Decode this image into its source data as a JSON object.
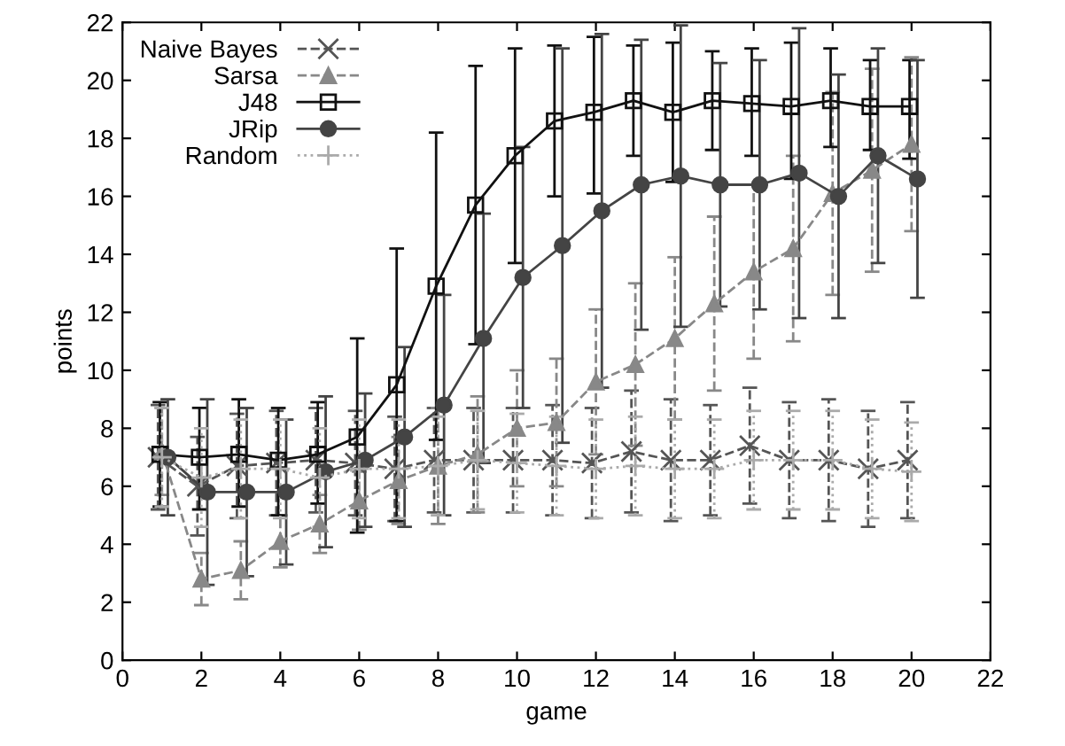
{
  "chart_data": {
    "type": "line",
    "xlabel": "game",
    "ylabel": "points",
    "xlim": [
      0,
      22
    ],
    "xticks": [
      0,
      2,
      4,
      6,
      8,
      10,
      12,
      14,
      16,
      18,
      20,
      22
    ],
    "ylim": [
      0,
      22
    ],
    "yticks": [
      0,
      2,
      4,
      6,
      8,
      10,
      12,
      14,
      16,
      18,
      20,
      22
    ],
    "grid": false,
    "legend": "top left",
    "series": [
      {
        "name": "Naive Bayes",
        "color": "#555555",
        "marker": "cross",
        "line_style": "dashed",
        "x": [
          0.9,
          1.9,
          2.9,
          3.9,
          4.9,
          5.9,
          6.9,
          7.9,
          8.9,
          9.9,
          10.9,
          11.9,
          12.9,
          13.9,
          14.9,
          15.9,
          16.9,
          17.9,
          18.9,
          19.9
        ],
        "values": [
          7.0,
          6.0,
          6.7,
          6.8,
          6.9,
          6.8,
          6.6,
          6.9,
          6.9,
          6.9,
          6.9,
          6.8,
          7.2,
          6.9,
          6.9,
          7.4,
          6.9,
          6.9,
          6.6,
          6.9
        ],
        "errors": [
          1.8,
          1.7,
          1.8,
          1.8,
          1.8,
          1.8,
          1.8,
          1.8,
          1.8,
          1.8,
          1.9,
          1.9,
          2.1,
          2.1,
          1.9,
          2.0,
          2.0,
          2.1,
          2.0,
          2.0
        ]
      },
      {
        "name": "Sarsa",
        "color": "#888888",
        "marker": "triangle",
        "line_style": "dashed",
        "x": [
          1,
          2,
          3,
          4,
          5,
          6,
          7,
          8,
          9,
          10,
          11,
          12,
          13,
          14,
          15,
          16,
          17,
          18,
          19,
          20
        ],
        "values": [
          7.2,
          2.8,
          3.1,
          4.1,
          4.7,
          5.5,
          6.2,
          6.7,
          7.1,
          8.0,
          8.2,
          9.6,
          10.2,
          11.1,
          12.3,
          13.4,
          14.2,
          16.1,
          16.9,
          17.8
        ],
        "errors": [
          1.5,
          0.9,
          1.0,
          0.9,
          1.0,
          1.0,
          1.5,
          2.0,
          2.0,
          2.0,
          2.2,
          2.5,
          2.8,
          2.8,
          3.0,
          3.0,
          3.2,
          3.5,
          3.5,
          3.0
        ]
      },
      {
        "name": "J48",
        "color": "#111111",
        "marker": "square",
        "line_style": "solid",
        "x": [
          0.95,
          1.95,
          2.95,
          3.95,
          4.95,
          5.95,
          6.95,
          7.95,
          8.95,
          9.95,
          10.95,
          11.95,
          12.95,
          13.95,
          14.95,
          15.95,
          16.95,
          17.95,
          18.95,
          19.95
        ],
        "values": [
          7.1,
          7.0,
          7.1,
          6.9,
          7.1,
          7.7,
          9.5,
          12.9,
          15.7,
          17.4,
          18.6,
          18.9,
          19.3,
          18.9,
          19.3,
          19.2,
          19.1,
          19.3,
          19.1,
          19.1
        ],
        "errors": [
          [
            5.3,
            8.9
          ],
          [
            5.2,
            8.7
          ],
          [
            5.3,
            9.0
          ],
          [
            5.0,
            8.7
          ],
          [
            5.4,
            8.9
          ],
          [
            4.4,
            11.1
          ],
          [
            4.8,
            14.2
          ],
          [
            7.6,
            18.2
          ],
          [
            10.9,
            20.5
          ],
          [
            13.7,
            21.1
          ],
          [
            16.0,
            21.2
          ],
          [
            16.1,
            21.5
          ],
          [
            17.4,
            21.2
          ],
          [
            16.5,
            21.3
          ],
          [
            17.6,
            21.0
          ],
          [
            17.4,
            21.1
          ],
          [
            16.6,
            21.3
          ],
          [
            17.7,
            21.1
          ],
          [
            17.6,
            20.7
          ],
          [
            17.3,
            20.7
          ]
        ]
      },
      {
        "name": "JRip",
        "color": "#444444",
        "marker": "circle",
        "line_style": "solid",
        "x": [
          1.15,
          2.15,
          3.15,
          4.15,
          5.15,
          6.15,
          7.15,
          8.15,
          9.15,
          10.15,
          11.15,
          12.15,
          13.15,
          14.15,
          15.15,
          16.15,
          17.15,
          18.15,
          19.15,
          20.15
        ],
        "values": [
          7.0,
          5.8,
          5.8,
          5.8,
          6.5,
          6.9,
          7.7,
          8.8,
          11.1,
          13.2,
          14.3,
          15.5,
          16.4,
          16.7,
          16.4,
          16.4,
          16.8,
          16.0,
          17.4,
          16.6
        ],
        "errors": [
          2.0,
          3.2,
          2.9,
          2.5,
          2.6,
          2.3,
          3.1,
          3.8,
          4.3,
          4.5,
          6.8,
          6.1,
          5.0,
          5.2,
          4.2,
          4.3,
          5.0,
          4.2,
          3.7,
          4.1
        ]
      },
      {
        "name": "Random",
        "color": "#aaaaaa",
        "marker": "plus",
        "line_style": "dotted",
        "x": [
          1,
          2,
          3,
          4,
          5,
          6,
          7,
          8,
          9,
          10,
          11,
          12,
          13,
          14,
          15,
          16,
          17,
          18,
          19,
          20
        ],
        "values": [
          7.0,
          6.3,
          6.6,
          6.6,
          6.3,
          6.6,
          6.6,
          6.7,
          6.9,
          6.8,
          6.7,
          6.6,
          6.7,
          6.6,
          6.6,
          6.9,
          6.9,
          6.9,
          6.6,
          6.5
        ],
        "errors": [
          1.7,
          1.7,
          1.7,
          1.7,
          1.7,
          1.7,
          1.7,
          1.7,
          1.7,
          1.7,
          1.7,
          1.7,
          1.7,
          1.7,
          1.7,
          1.7,
          1.7,
          1.7,
          1.7,
          1.7
        ]
      }
    ]
  }
}
